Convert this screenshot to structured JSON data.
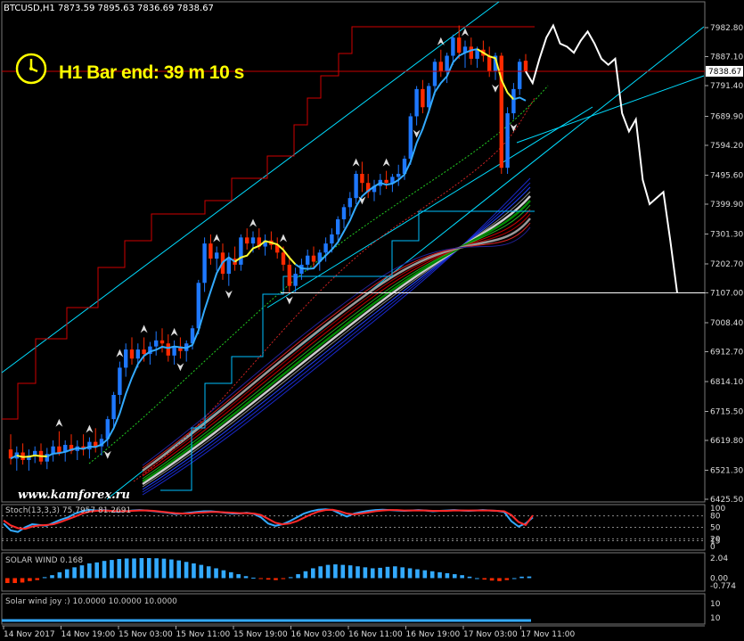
{
  "header": {
    "title": "BTCUSD,H1  7873.59 7895.63 7836.69 7838.67",
    "timer": "H1 Bar end: 39 m 10 s",
    "watermark": "www.kamforex.ru"
  },
  "colors": {
    "background": "#000000",
    "bull": "#1e78ff",
    "bear": "#ff2a00",
    "price_line": "#c80000",
    "ma_blue": "#33aaff",
    "ma_yellow": "#ffff33",
    "channel": "#00dcff",
    "projection": "#ffffff",
    "envelope": "#d00000",
    "histogram": "#33aaff"
  },
  "chart_data": {
    "type": "candlestick",
    "symbol": "BTCUSD",
    "timeframe": "H1",
    "ohlc_current": {
      "open": 7873.59,
      "high": 7895.63,
      "low": 7836.69,
      "close": 7838.67
    },
    "y_ticks": [
      7982.8,
      7887.1,
      7791.4,
      7689.9,
      7594.2,
      7495.6,
      7399.9,
      7301.3,
      7202.7,
      7107.0,
      7008.4,
      6912.7,
      6814.1,
      6715.5,
      6619.8,
      6521.3,
      6425.5
    ],
    "ylim": [
      6407,
      8037
    ],
    "current_price_label": "7838.67",
    "x_ticks": [
      "14 Nov 2017",
      "14 Nov 19:00",
      "15 Nov 03:00",
      "15 Nov 11:00",
      "15 Nov 19:00",
      "16 Nov 03:00",
      "16 Nov 11:00",
      "16 Nov 19:00",
      "17 Nov 03:00",
      "17 Nov 11:00"
    ],
    "candles": [
      [
        6590,
        6640,
        6540,
        6560
      ],
      [
        6560,
        6600,
        6520,
        6580
      ],
      [
        6580,
        6610,
        6540,
        6555
      ],
      [
        6555,
        6590,
        6520,
        6570
      ],
      [
        6570,
        6600,
        6545,
        6585
      ],
      [
        6585,
        6610,
        6540,
        6550
      ],
      [
        6550,
        6595,
        6525,
        6575
      ],
      [
        6575,
        6620,
        6550,
        6600
      ],
      [
        6600,
        6650,
        6570,
        6580
      ],
      [
        6580,
        6620,
        6550,
        6605
      ],
      [
        6605,
        6640,
        6575,
        6585
      ],
      [
        6585,
        6620,
        6555,
        6600
      ],
      [
        6600,
        6640,
        6570,
        6590
      ],
      [
        6590,
        6630,
        6560,
        6615
      ],
      [
        6615,
        6660,
        6580,
        6600
      ],
      [
        6600,
        6640,
        6570,
        6625
      ],
      [
        6625,
        6700,
        6600,
        6690
      ],
      [
        6690,
        6780,
        6660,
        6770
      ],
      [
        6770,
        6880,
        6740,
        6860
      ],
      [
        6860,
        6940,
        6830,
        6920
      ],
      [
        6920,
        6960,
        6870,
        6890
      ],
      [
        6890,
        6940,
        6860,
        6920
      ],
      [
        6920,
        6960,
        6880,
        6905
      ],
      [
        6905,
        6945,
        6870,
        6930
      ],
      [
        6930,
        6980,
        6900,
        6950
      ],
      [
        6950,
        6990,
        6910,
        6940
      ],
      [
        6940,
        6970,
        6880,
        6900
      ],
      [
        6900,
        6950,
        6870,
        6930
      ],
      [
        6930,
        6960,
        6890,
        6915
      ],
      [
        6915,
        6950,
        6880,
        6940
      ],
      [
        6940,
        7000,
        6920,
        6990
      ],
      [
        6990,
        7150,
        6970,
        7140
      ],
      [
        7140,
        7290,
        7110,
        7270
      ],
      [
        7270,
        7300,
        7200,
        7220
      ],
      [
        7220,
        7260,
        7180,
        7240
      ],
      [
        7240,
        7270,
        7150,
        7170
      ],
      [
        7170,
        7240,
        7130,
        7220
      ],
      [
        7220,
        7260,
        7180,
        7200
      ],
      [
        7200,
        7300,
        7180,
        7290
      ],
      [
        7290,
        7320,
        7250,
        7270
      ],
      [
        7270,
        7310,
        7240,
        7290
      ],
      [
        7290,
        7320,
        7250,
        7260
      ],
      [
        7260,
        7300,
        7230,
        7280
      ],
      [
        7280,
        7310,
        7250,
        7265
      ],
      [
        7265,
        7290,
        7220,
        7240
      ],
      [
        7240,
        7260,
        7180,
        7200
      ],
      [
        7200,
        7230,
        7110,
        7130
      ],
      [
        7130,
        7190,
        7110,
        7170
      ],
      [
        7170,
        7220,
        7150,
        7200
      ],
      [
        7200,
        7250,
        7180,
        7230
      ],
      [
        7230,
        7260,
        7190,
        7210
      ],
      [
        7210,
        7250,
        7180,
        7240
      ],
      [
        7240,
        7290,
        7210,
        7270
      ],
      [
        7270,
        7320,
        7240,
        7300
      ],
      [
        7300,
        7360,
        7280,
        7350
      ],
      [
        7350,
        7400,
        7320,
        7390
      ],
      [
        7390,
        7440,
        7360,
        7420
      ],
      [
        7420,
        7510,
        7400,
        7500
      ],
      [
        7500,
        7540,
        7440,
        7470
      ],
      [
        7470,
        7500,
        7420,
        7440
      ],
      [
        7440,
        7480,
        7410,
        7460
      ],
      [
        7460,
        7500,
        7430,
        7480
      ],
      [
        7480,
        7510,
        7450,
        7470
      ],
      [
        7470,
        7500,
        7440,
        7490
      ],
      [
        7490,
        7530,
        7460,
        7500
      ],
      [
        7500,
        7560,
        7480,
        7550
      ],
      [
        7550,
        7700,
        7530,
        7690
      ],
      [
        7690,
        7790,
        7660,
        7780
      ],
      [
        7780,
        7810,
        7700,
        7720
      ],
      [
        7720,
        7800,
        7700,
        7790
      ],
      [
        7790,
        7880,
        7760,
        7870
      ],
      [
        7870,
        7910,
        7820,
        7840
      ],
      [
        7840,
        7900,
        7800,
        7890
      ],
      [
        7890,
        7960,
        7860,
        7950
      ],
      [
        7950,
        7990,
        7880,
        7900
      ],
      [
        7900,
        7940,
        7850,
        7920
      ],
      [
        7920,
        7950,
        7860,
        7880
      ],
      [
        7880,
        7920,
        7850,
        7910
      ],
      [
        7910,
        7940,
        7870,
        7890
      ],
      [
        7890,
        7920,
        7820,
        7840
      ],
      [
        7840,
        7900,
        7810,
        7890
      ],
      [
        7890,
        7900,
        7500,
        7520
      ],
      [
        7520,
        7720,
        7500,
        7700
      ],
      [
        7700,
        7800,
        7680,
        7780
      ],
      [
        7780,
        7880,
        7760,
        7870
      ],
      [
        7873.59,
        7895.63,
        7836.69,
        7838.67
      ]
    ],
    "projection": [
      [
        0,
        7838.67
      ],
      [
        1,
        7800
      ],
      [
        2,
        7880
      ],
      [
        3,
        7950
      ],
      [
        4,
        7990
      ],
      [
        5,
        7930
      ],
      [
        6,
        7920
      ],
      [
        7,
        7900
      ],
      [
        8,
        7940
      ],
      [
        9,
        7970
      ],
      [
        10,
        7930
      ],
      [
        11,
        7880
      ],
      [
        12,
        7860
      ],
      [
        13,
        7880
      ],
      [
        14,
        7700
      ],
      [
        15,
        7640
      ],
      [
        16,
        7680
      ],
      [
        17,
        7480
      ],
      [
        18,
        7400
      ],
      [
        19,
        7420
      ],
      [
        20,
        7440
      ],
      [
        21,
        7280
      ],
      [
        22,
        7107
      ]
    ],
    "support_level": 7107.0,
    "subwindows": [
      {
        "label": "Stoch(13,3,3) 75.7957 81.2691",
        "range": [
          0,
          100
        ],
        "levels": [
          "100",
          "80",
          "50",
          "20",
          "15",
          "0"
        ],
        "k": [
          60,
          42,
          38,
          50,
          58,
          56,
          54,
          62,
          70,
          76,
          86,
          92,
          96,
          94,
          95,
          93,
          90,
          92,
          94,
          95,
          94,
          92,
          90,
          88,
          85,
          86,
          88,
          90,
          92,
          92,
          90,
          88,
          86,
          86,
          88,
          85,
          76,
          60,
          54,
          58,
          66,
          76,
          86,
          92,
          96,
          97,
          95,
          86,
          78,
          86,
          90,
          93,
          95,
          96,
          95,
          94,
          93,
          94,
          95,
          94,
          92,
          93,
          94,
          95,
          94,
          93,
          94,
          95,
          94,
          93,
          90,
          66,
          52,
          60,
          75.8
        ],
        "d": [
          68,
          55,
          48,
          46,
          52,
          55,
          56,
          58,
          64,
          71,
          78,
          86,
          91,
          93,
          94,
          93,
          92,
          92,
          93,
          94,
          94,
          93,
          91,
          89,
          87,
          86,
          86,
          88,
          89,
          90,
          90,
          89,
          88,
          87,
          87,
          86,
          82,
          72,
          62,
          58,
          60,
          66,
          75,
          84,
          91,
          95,
          96,
          92,
          86,
          84,
          86,
          89,
          92,
          94,
          95,
          95,
          94,
          94,
          94,
          94,
          93,
          93,
          93,
          94,
          94,
          94,
          94,
          94,
          94,
          93,
          92,
          82,
          64,
          56,
          81.3
        ]
      },
      {
        "label": "SOLAR WIND 0.168",
        "range": [
          -0.774,
          2.04
        ],
        "levels": [
          "2.04",
          "0.00",
          "-0.774"
        ],
        "values": [
          -0.5,
          -0.5,
          -0.45,
          -0.3,
          -0.2,
          0.1,
          0.3,
          0.6,
          0.9,
          1.1,
          1.3,
          1.5,
          1.6,
          1.75,
          1.85,
          1.95,
          2.0,
          2.0,
          2.04,
          2.04,
          2.02,
          1.98,
          1.9,
          1.8,
          1.65,
          1.5,
          1.35,
          1.2,
          1.0,
          0.8,
          0.6,
          0.4,
          0.2,
          0.05,
          -0.05,
          -0.15,
          -0.2,
          -0.1,
          0.1,
          0.4,
          0.7,
          1.0,
          1.2,
          1.35,
          1.4,
          1.35,
          1.3,
          1.2,
          1.1,
          1.0,
          1.05,
          1.15,
          1.2,
          1.1,
          1.0,
          0.9,
          0.8,
          0.7,
          0.6,
          0.5,
          0.4,
          0.3,
          0.15,
          0.0,
          -0.15,
          -0.25,
          -0.3,
          -0.2,
          0.0,
          0.15,
          0.168
        ]
      },
      {
        "label": "Solar wind joy :) 10.0000 10.0000 10.0000",
        "range": [
          0,
          10
        ],
        "levels": [
          "10",
          "10"
        ]
      }
    ]
  }
}
